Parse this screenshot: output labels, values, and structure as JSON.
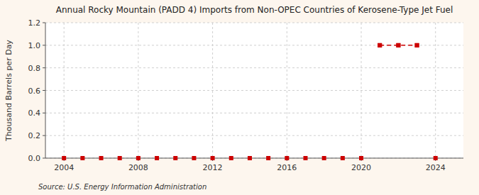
{
  "chart_data": {
    "type": "scatter",
    "title": "Annual Rocky Mountain (PADD 4) Imports from Non-OPEC Countries of Kerosene-Type Jet Fuel",
    "ylabel": "Thousand Barrels per Day",
    "source": "Source: U.S. Energy Information Administration",
    "x": [
      2004,
      2005,
      2006,
      2007,
      2008,
      2009,
      2010,
      2011,
      2012,
      2013,
      2014,
      2015,
      2016,
      2017,
      2018,
      2019,
      2020,
      2021,
      2022,
      2023,
      2024
    ],
    "series": [
      {
        "type": "scatter",
        "color": "#cc0000",
        "marker": "square",
        "values": [
          0,
          0,
          0,
          0,
          0,
          0,
          0,
          0,
          0,
          0,
          0,
          0,
          0,
          0,
          0,
          0,
          0,
          1,
          1,
          1,
          0
        ]
      },
      {
        "type": "line",
        "color": "#cc0000",
        "marker": "square",
        "line_style": "dashed",
        "values": [
          null,
          null,
          null,
          null,
          null,
          null,
          null,
          null,
          null,
          null,
          null,
          null,
          null,
          null,
          null,
          null,
          null,
          1,
          1,
          1,
          null
        ]
      }
    ],
    "xlim": [
      2003.0,
      2025.5
    ],
    "xticks": [
      2004,
      2008,
      2012,
      2016,
      2020,
      2024
    ],
    "ylim": [
      0.0,
      1.2
    ],
    "yticks": [
      {
        "value": 0.0,
        "label": "0.0"
      },
      0.2,
      0.4,
      0.6,
      0.8,
      {
        "value": 1.0,
        "label": "1.0"
      },
      1.2
    ],
    "grid": true
  }
}
